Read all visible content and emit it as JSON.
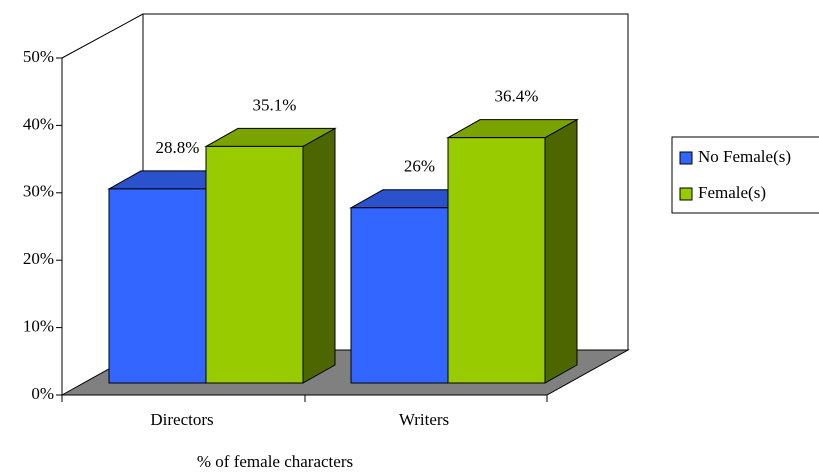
{
  "chart_data": {
    "type": "bar3d",
    "x_label": "% of female characters",
    "categories": [
      "Directors",
      "Writers"
    ],
    "series": [
      {
        "name": "No Female(s)",
        "color": "#3366ff",
        "values": [
          28.8,
          26
        ],
        "value_labels": [
          "28.8%",
          "26%"
        ]
      },
      {
        "name": "Female(s)",
        "color": "#99cc00",
        "values": [
          35.1,
          36.4
        ],
        "value_labels": [
          "35.1%",
          "36.4%"
        ]
      }
    ],
    "ylim": [
      0,
      50
    ],
    "yticks": [
      {
        "value": 0,
        "label": "0%"
      },
      {
        "value": 10,
        "label": "10%"
      },
      {
        "value": 20,
        "label": "20%"
      },
      {
        "value": 30,
        "label": "30%"
      },
      {
        "value": 40,
        "label": "40%"
      },
      {
        "value": 50,
        "label": "50%"
      }
    ],
    "legend": "right"
  }
}
